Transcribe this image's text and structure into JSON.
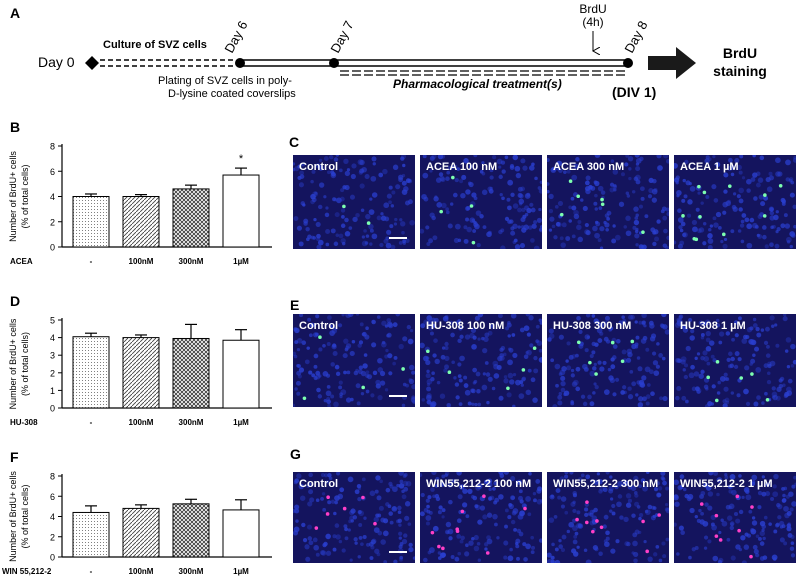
{
  "panel_letters": {
    "A": "A",
    "B": "B",
    "C": "C",
    "D": "D",
    "E": "E",
    "F": "F",
    "G": "G"
  },
  "timeline": {
    "day0": "Day 0",
    "day6": "Day 6",
    "day7": "Day 7",
    "day8": "Day 8",
    "culture": "Culture of SVZ cells",
    "plating_line1": "Plating of SVZ cells in poly-",
    "plating_line2": "D-lysine coated coverslips",
    "treatment": "Pharmacological treatment(s)",
    "brdu_line1": "BrdU",
    "brdu_line2": "(4h)",
    "div": "(DIV 1)",
    "result_line1": "BrdU",
    "result_line2": "staining"
  },
  "chart_data": [
    {
      "type": "bar",
      "panel": "B",
      "ylabel_line1": "Number of BrdU+ cells",
      "ylabel_line2": "(% of total cells)",
      "group_label": "ACEA",
      "categories": [
        "-",
        "100nM",
        "300nM",
        "1µM"
      ],
      "values": [
        4.0,
        4.0,
        4.6,
        5.7
      ],
      "errors": [
        0.2,
        0.15,
        0.3,
        0.55
      ],
      "ylim": [
        0,
        8
      ],
      "yticks": [
        "0",
        "2",
        "4",
        "6",
        "8"
      ],
      "significance": [
        "",
        "",
        "",
        "*"
      ],
      "patterns": [
        "dots",
        "diag",
        "cross",
        "plain"
      ]
    },
    {
      "type": "bar",
      "panel": "D",
      "ylabel_line1": "Number of BrdU+ cells",
      "ylabel_line2": "(% of total cells)",
      "group_label": "HU-308",
      "categories": [
        "-",
        "100nM",
        "300nM",
        "1µM"
      ],
      "values": [
        4.05,
        4.0,
        3.95,
        3.85
      ],
      "errors": [
        0.2,
        0.15,
        0.8,
        0.6
      ],
      "ylim": [
        0,
        5
      ],
      "yticks": [
        "0",
        "1",
        "2",
        "3",
        "4",
        "5"
      ],
      "significance": [
        "",
        "",
        "",
        ""
      ],
      "patterns": [
        "dots",
        "diag",
        "cross",
        "plain"
      ]
    },
    {
      "type": "bar",
      "panel": "F",
      "ylabel_line1": "Number of BrdU+ cells",
      "ylabel_line2": "(% of total cells)",
      "group_label": "WIN 55,212-2",
      "categories": [
        "-",
        "100nM",
        "300nM",
        "1µM"
      ],
      "values": [
        4.4,
        4.8,
        5.25,
        4.65
      ],
      "errors": [
        0.65,
        0.35,
        0.45,
        1.0
      ],
      "ylim": [
        0,
        8
      ],
      "yticks": [
        "0",
        "2",
        "4",
        "6",
        "8"
      ],
      "significance": [
        "",
        "",
        "",
        ""
      ],
      "patterns": [
        "dots",
        "diag",
        "cross",
        "plain"
      ]
    }
  ],
  "micrographs": {
    "C": [
      "Control",
      "ACEA 100 nM",
      "ACEA 300 nM",
      "ACEA 1 µM"
    ],
    "E": [
      "Control",
      "HU-308 100 nM",
      "HU-308 300 nM",
      "HU-308 1 µM"
    ],
    "G": [
      "Control",
      "WIN55,212-2 100 nM",
      "WIN55,212-2 300 nM",
      "WIN55,212-2 1 µM"
    ]
  },
  "colors": {
    "tile_bg": "#14145e",
    "nuclei": "#2a3fd0",
    "brdu_green": "#7dffb0",
    "brdu_magenta": "#ff3fc8"
  }
}
